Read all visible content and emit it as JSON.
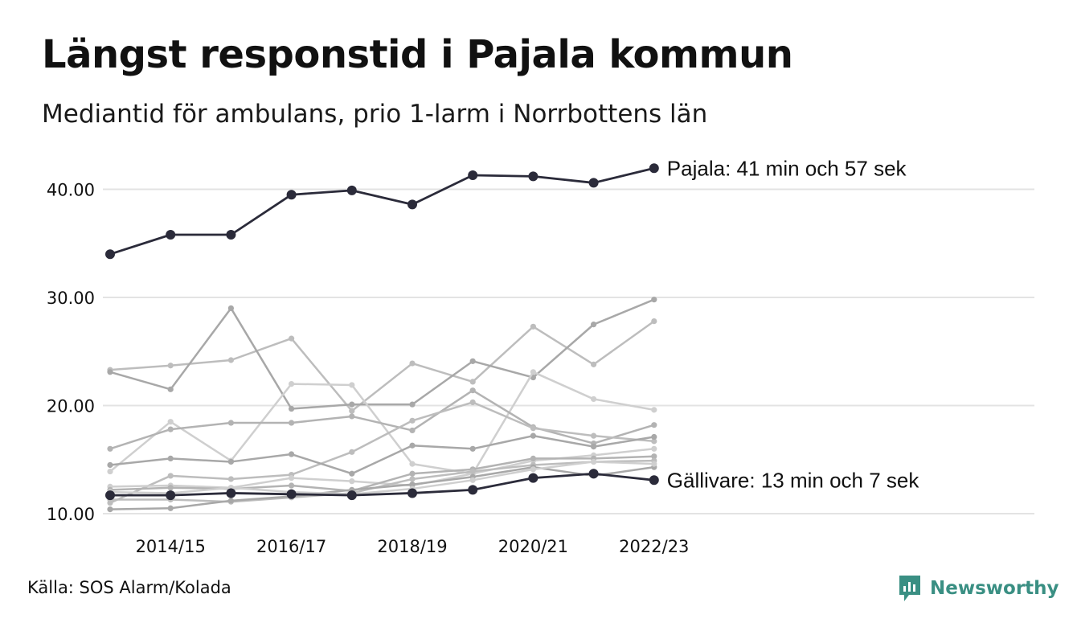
{
  "header": {
    "title": "Längst responstid i Pajala kommun",
    "subtitle": "Mediantid för ambulans, prio 1-larm i Norrbottens län"
  },
  "footer": {
    "source": "Källa: SOS Alarm/Kolada",
    "brand": "Newsworthy"
  },
  "colors": {
    "highlight": "#2b2b3a",
    "context": [
      "#bdbdbd",
      "#a8a8a8",
      "#cfcfcf",
      "#b3b3b3"
    ],
    "gridline": "#e3e3e3",
    "brand": "#3a8f83"
  },
  "chart_data": {
    "type": "line",
    "title": "Längst responstid i Pajala kommun",
    "subtitle": "Mediantid för ambulans, prio 1-larm i Norrbottens län",
    "x": [
      "2013/14",
      "2014/15",
      "2015/16",
      "2016/17",
      "2017/18",
      "2018/19",
      "2019/20",
      "2020/21",
      "2021/22",
      "2022/23"
    ],
    "x_tick_labels": [
      "2014/15",
      "2016/17",
      "2018/19",
      "2020/21",
      "2022/23"
    ],
    "y_ticks": [
      "10.00",
      "20.00",
      "30.00",
      "40.00"
    ],
    "ylim": [
      10,
      43
    ],
    "grid": true,
    "highlighted_series": [
      {
        "name": "Pajala",
        "values": [
          34.0,
          35.8,
          35.8,
          39.5,
          39.9,
          38.6,
          41.3,
          41.2,
          40.6,
          41.95
        ],
        "annotation": "Pajala: 41 min och 57 sek"
      },
      {
        "name": "Gällivare",
        "values": [
          11.7,
          11.7,
          11.9,
          11.8,
          11.7,
          11.9,
          12.2,
          13.3,
          13.7,
          13.1
        ],
        "annotation": "Gällivare: 13 min och 7 sek"
      }
    ],
    "context_series": [
      {
        "values": [
          23.3,
          23.7,
          24.2,
          26.2,
          19.5,
          23.9,
          22.2,
          27.3,
          23.8,
          27.8
        ]
      },
      {
        "values": [
          23.1,
          21.5,
          29.0,
          19.7,
          20.1,
          20.1,
          24.1,
          22.6,
          27.5,
          29.8
        ]
      },
      {
        "values": [
          13.9,
          18.5,
          14.9,
          22.0,
          21.9,
          14.6,
          13.7,
          23.1,
          20.6,
          19.6
        ]
      },
      {
        "values": [
          16.0,
          17.8,
          18.4,
          18.4,
          19.0,
          17.7,
          21.4,
          18.0,
          16.5,
          18.2
        ]
      },
      {
        "values": [
          11.0,
          13.5,
          13.2,
          13.6,
          15.7,
          18.6,
          20.3,
          17.9,
          17.2,
          16.7
        ]
      },
      {
        "values": [
          14.5,
          15.1,
          14.8,
          15.5,
          13.7,
          16.3,
          16.0,
          17.2,
          16.2,
          17.1
        ]
      },
      {
        "values": [
          12.5,
          12.6,
          12.4,
          13.3,
          13.0,
          12.6,
          13.7,
          14.9,
          15.4,
          16.0
        ]
      },
      {
        "values": [
          12.2,
          12.4,
          12.3,
          12.6,
          12.1,
          13.7,
          14.1,
          15.1,
          15.1,
          15.3
        ]
      },
      {
        "values": [
          11.3,
          11.3,
          11.1,
          11.5,
          11.9,
          13.2,
          13.9,
          14.5,
          14.8,
          14.9
        ]
      },
      {
        "values": [
          10.4,
          10.5,
          11.2,
          11.6,
          12.2,
          12.7,
          13.4,
          14.3,
          13.5,
          14.3
        ]
      },
      {
        "values": [
          12.0,
          11.9,
          12.4,
          12.0,
          11.8,
          12.3,
          13.1,
          14.1,
          14.8,
          14.6
        ]
      }
    ]
  }
}
